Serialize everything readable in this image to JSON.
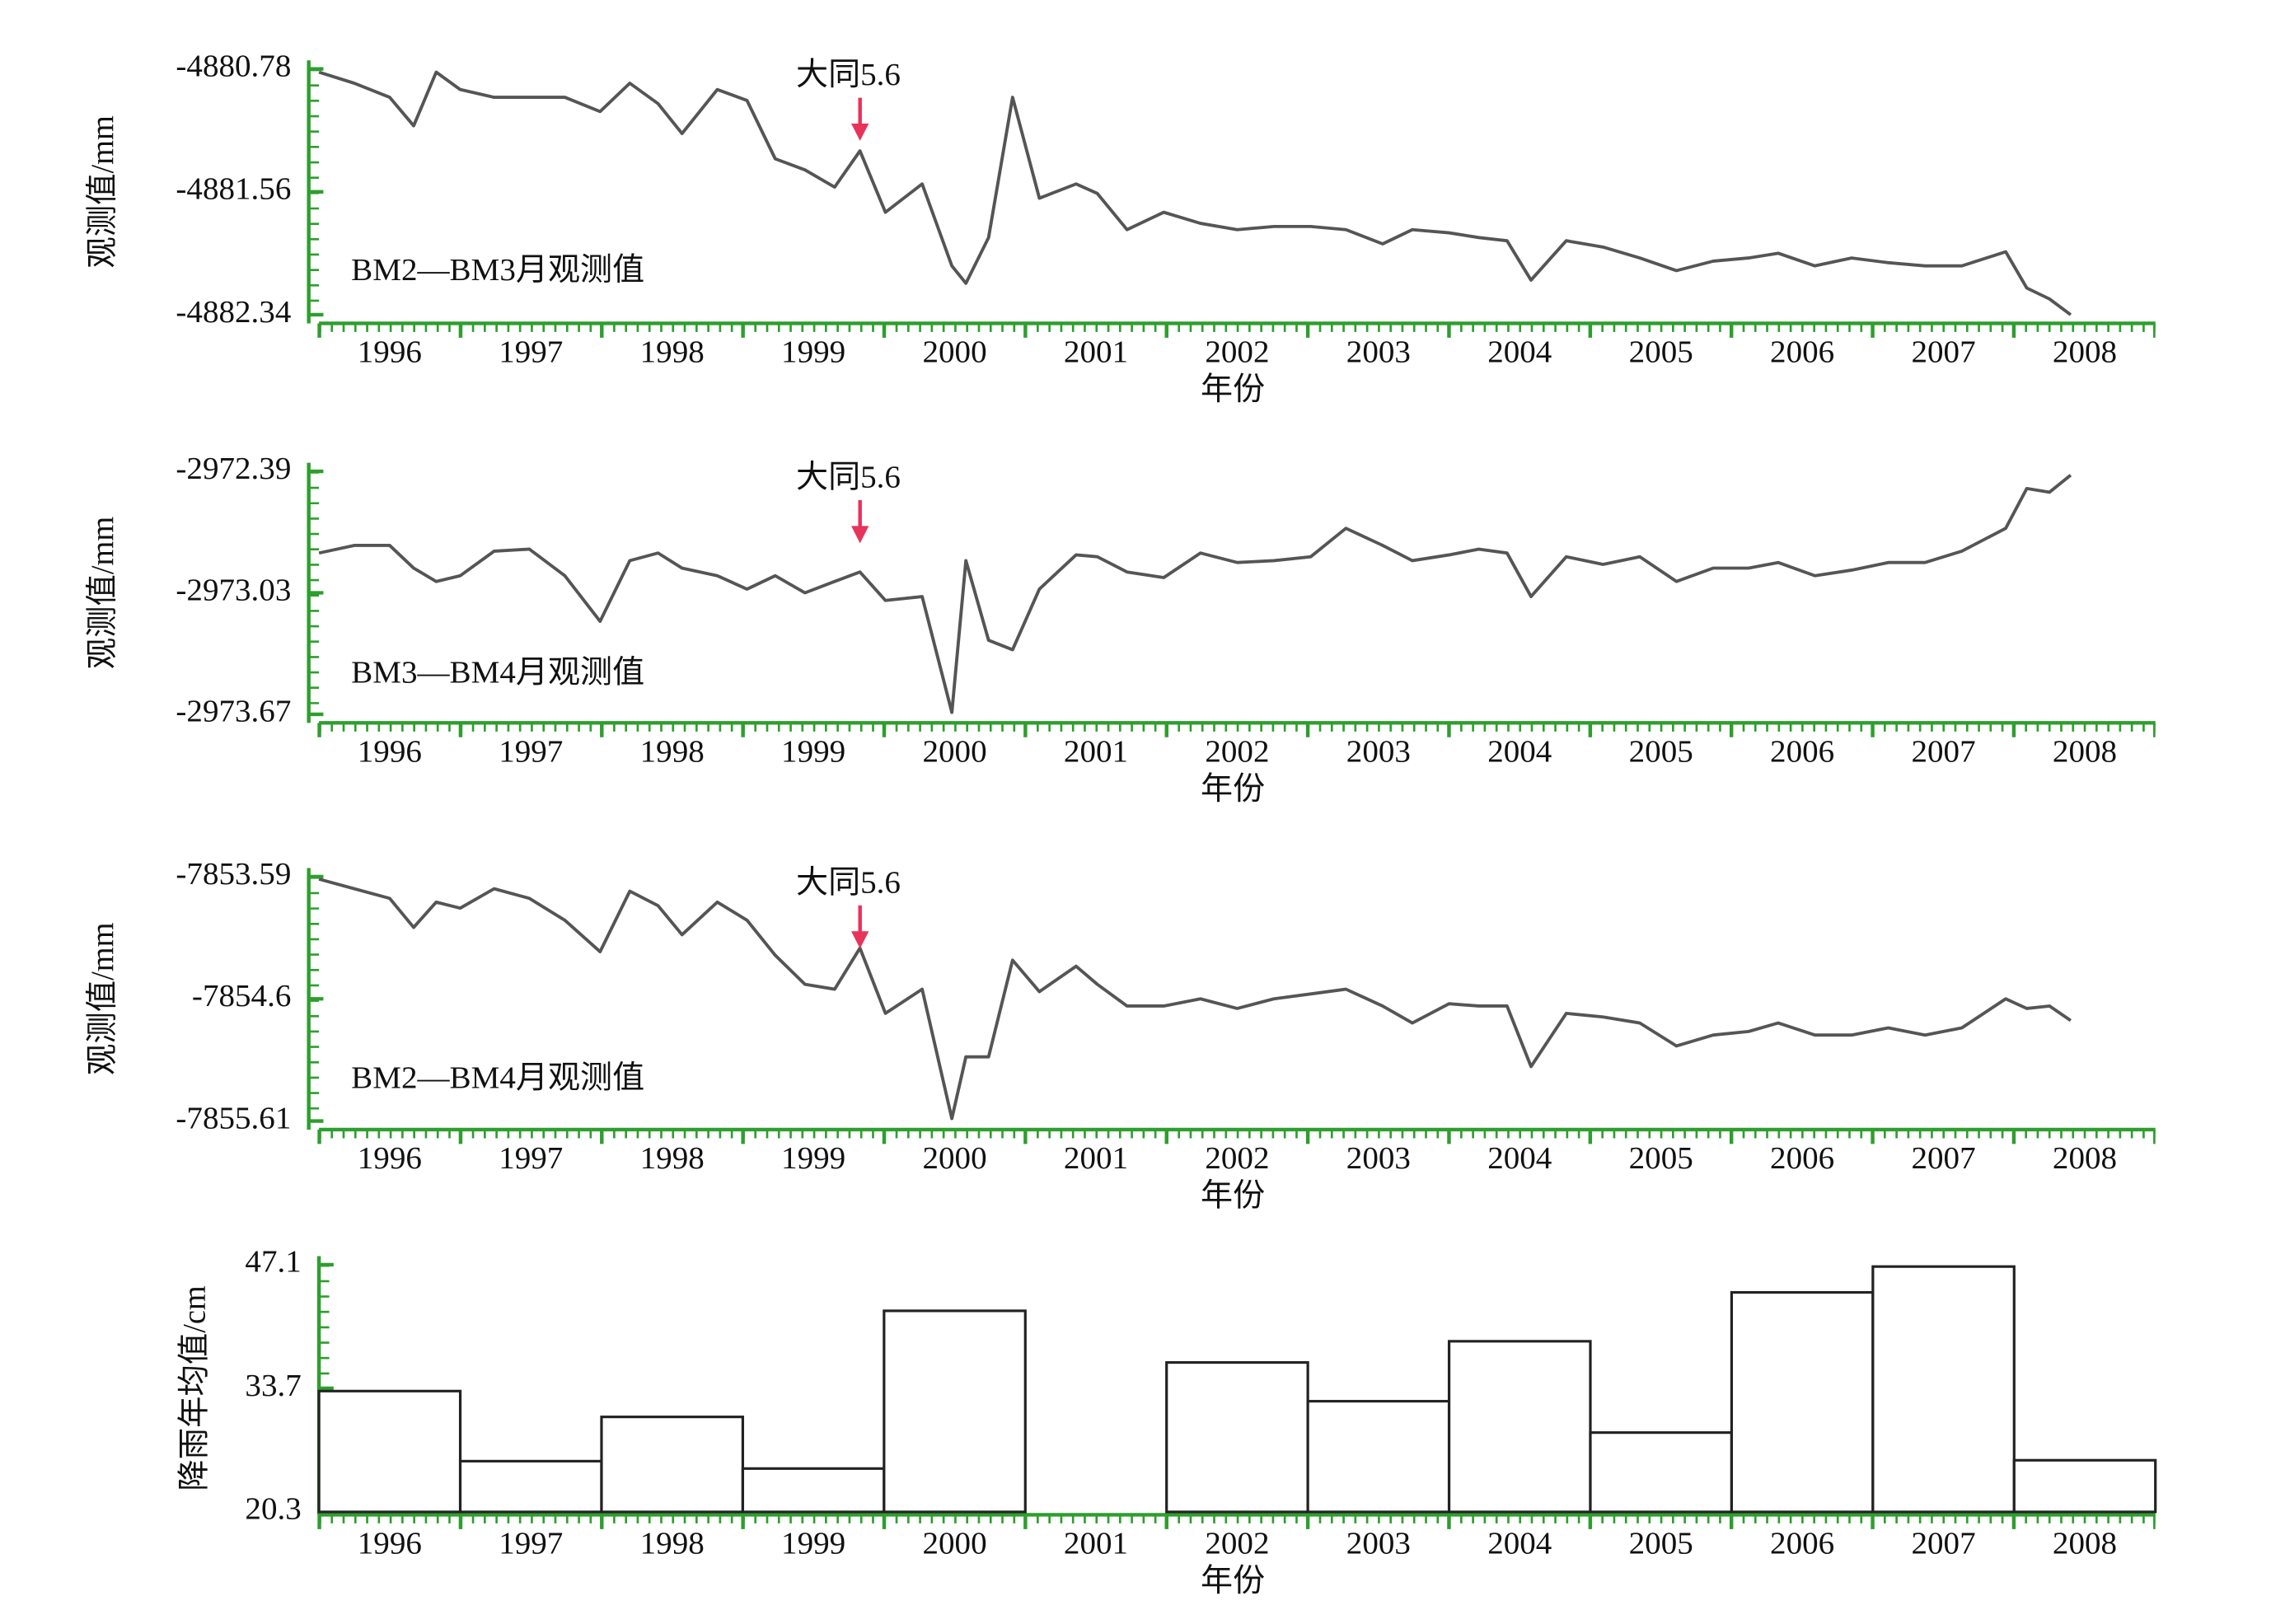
{
  "chart_data": [
    {
      "type": "line",
      "ylabel": "观测值/mm",
      "xlabel": "年份",
      "annotation": {
        "text": "大同5.6",
        "x": 1999.83
      },
      "x": [
        1996.0,
        1996.25,
        1996.5,
        1996.67,
        1996.83,
        1997.0,
        1997.24,
        1997.49,
        1997.74,
        1997.99,
        1998.2,
        1998.4,
        1998.57,
        1998.82,
        1999.03,
        1999.23,
        1999.44,
        1999.65,
        1999.83,
        2000.01,
        2000.27,
        2000.48,
        2000.58,
        2000.74,
        2000.91,
        2001.1,
        2001.36,
        2001.51,
        2001.72,
        2001.98,
        2002.24,
        2002.5,
        2002.76,
        2003.02,
        2003.27,
        2003.53,
        2003.74,
        2004.0,
        2004.21,
        2004.41,
        2004.58,
        2004.83,
        2005.09,
        2005.35,
        2005.61,
        2005.87,
        2006.12,
        2006.33,
        2006.59,
        2006.85,
        2007.11,
        2007.37,
        2007.63,
        2007.94,
        2008.09,
        2008.25,
        2008.4
      ],
      "series": [
        {
          "name": "BM2—BM3月观测值",
          "color": "#555555",
          "values": [
            -4880.8,
            -4880.87,
            -4880.96,
            -4881.14,
            -4880.8,
            -4880.91,
            -4880.96,
            -4880.96,
            -4880.96,
            -4881.05,
            -4880.87,
            -4881.0,
            -4881.19,
            -4880.91,
            -4880.98,
            -4881.35,
            -4881.42,
            -4881.53,
            -4881.3,
            -4881.69,
            -4881.51,
            -4882.03,
            -4882.14,
            -4881.85,
            -4880.96,
            -4881.6,
            -4881.51,
            -4881.57,
            -4881.8,
            -4881.69,
            -4881.76,
            -4881.8,
            -4881.78,
            -4881.78,
            -4881.8,
            -4881.89,
            -4881.8,
            -4881.82,
            -4881.85,
            -4881.87,
            -4882.12,
            -4881.87,
            -4881.91,
            -4881.98,
            -4882.06,
            -4882.0,
            -4881.98,
            -4881.95,
            -4882.03,
            -4881.98,
            -4882.01,
            -4882.03,
            -4882.03,
            -4881.94,
            -4882.17,
            -4882.24,
            -4882.34
          ]
        }
      ],
      "xlim": [
        1996,
        2009
      ],
      "xticks": [
        {
          "value": 1996.5,
          "label": "1996"
        },
        {
          "value": 1997.5,
          "label": "1997"
        },
        {
          "value": 1998.5,
          "label": "1998"
        },
        {
          "value": 1999.5,
          "label": "1999"
        },
        {
          "value": 2000.5,
          "label": "2000"
        },
        {
          "value": 2001.5,
          "label": "2001"
        },
        {
          "value": 2002.5,
          "label": "2002"
        },
        {
          "value": 2003.5,
          "label": "2003"
        },
        {
          "value": 2004.5,
          "label": "2004"
        },
        {
          "value": 2005.5,
          "label": "2005"
        },
        {
          "value": 2006.5,
          "label": "2006"
        },
        {
          "value": 2007.5,
          "label": "2007"
        },
        {
          "value": 2008.5,
          "label": "2008"
        }
      ],
      "ylim": [
        -4882.34,
        -4880.78
      ],
      "yticks": [
        -4880.78,
        -4881.56,
        -4882.34
      ]
    },
    {
      "type": "line",
      "ylabel": "观测值/mm",
      "xlabel": "年份",
      "annotation": {
        "text": "大同5.6",
        "x": 1999.83
      },
      "x": [
        1996.0,
        1996.25,
        1996.5,
        1996.67,
        1996.83,
        1997.0,
        1997.24,
        1997.49,
        1997.74,
        1997.99,
        1998.2,
        1998.4,
        1998.57,
        1998.82,
        1999.03,
        1999.23,
        1999.44,
        1999.65,
        1999.83,
        2000.01,
        2000.27,
        2000.48,
        2000.58,
        2000.74,
        2000.91,
        2001.1,
        2001.36,
        2001.51,
        2001.72,
        2001.98,
        2002.24,
        2002.5,
        2002.76,
        2003.02,
        2003.27,
        2003.53,
        2003.74,
        2004.0,
        2004.21,
        2004.41,
        2004.58,
        2004.83,
        2005.09,
        2005.35,
        2005.61,
        2005.87,
        2006.12,
        2006.33,
        2006.59,
        2006.85,
        2007.11,
        2007.37,
        2007.63,
        2007.94,
        2008.09,
        2008.25,
        2008.4
      ],
      "series": [
        {
          "name": "BM3—BM4月观测值",
          "color": "#555555",
          "values": [
            -2972.82,
            -2972.78,
            -2972.78,
            -2972.9,
            -2972.97,
            -2972.94,
            -2972.81,
            -2972.8,
            -2972.94,
            -2973.18,
            -2972.86,
            -2972.82,
            -2972.9,
            -2972.94,
            -2973.01,
            -2972.94,
            -2973.03,
            -2972.97,
            -2972.92,
            -2973.07,
            -2973.05,
            -2973.66,
            -2972.86,
            -2973.28,
            -2973.33,
            -2973.01,
            -2972.83,
            -2972.84,
            -2972.92,
            -2972.95,
            -2972.82,
            -2972.87,
            -2972.86,
            -2972.84,
            -2972.69,
            -2972.78,
            -2972.86,
            -2972.83,
            -2972.8,
            -2972.82,
            -2973.05,
            -2972.84,
            -2972.88,
            -2972.84,
            -2972.97,
            -2972.9,
            -2972.9,
            -2972.87,
            -2972.94,
            -2972.91,
            -2972.87,
            -2972.87,
            -2972.81,
            -2972.69,
            -2972.48,
            -2972.5,
            -2972.41
          ]
        }
      ],
      "xlim": [
        1996,
        2009
      ],
      "xticks": [
        {
          "value": 1996.5,
          "label": "1996"
        },
        {
          "value": 1997.5,
          "label": "1997"
        },
        {
          "value": 1998.5,
          "label": "1998"
        },
        {
          "value": 1999.5,
          "label": "1999"
        },
        {
          "value": 2000.5,
          "label": "2000"
        },
        {
          "value": 2001.5,
          "label": "2001"
        },
        {
          "value": 2002.5,
          "label": "2002"
        },
        {
          "value": 2003.5,
          "label": "2003"
        },
        {
          "value": 2004.5,
          "label": "2004"
        },
        {
          "value": 2005.5,
          "label": "2005"
        },
        {
          "value": 2006.5,
          "label": "2006"
        },
        {
          "value": 2007.5,
          "label": "2007"
        },
        {
          "value": 2008.5,
          "label": "2008"
        }
      ],
      "ylim": [
        -2973.67,
        -2972.39
      ],
      "yticks": [
        -2972.39,
        -2973.03,
        -2973.67
      ]
    },
    {
      "type": "line",
      "ylabel": "观测值/mm",
      "xlabel": "年份",
      "annotation": {
        "text": "大同5.6",
        "x": 1999.83
      },
      "x": [
        1996.0,
        1996.25,
        1996.5,
        1996.67,
        1996.83,
        1997.0,
        1997.24,
        1997.49,
        1997.74,
        1997.99,
        1998.2,
        1998.4,
        1998.57,
        1998.82,
        1999.03,
        1999.23,
        1999.44,
        1999.65,
        1999.83,
        2000.01,
        2000.27,
        2000.48,
        2000.58,
        2000.74,
        2000.91,
        2001.1,
        2001.36,
        2001.51,
        2001.72,
        2001.98,
        2002.24,
        2002.5,
        2002.76,
        2003.02,
        2003.27,
        2003.53,
        2003.74,
        2004.0,
        2004.21,
        2004.41,
        2004.58,
        2004.83,
        2005.09,
        2005.35,
        2005.61,
        2005.87,
        2006.12,
        2006.33,
        2006.59,
        2006.85,
        2007.11,
        2007.37,
        2007.63,
        2007.94,
        2008.09,
        2008.25,
        2008.4
      ],
      "series": [
        {
          "name": "BM2—BM4月观测值",
          "color": "#555555",
          "values": [
            -7853.61,
            -7853.69,
            -7853.77,
            -7854.01,
            -7853.8,
            -7853.85,
            -7853.69,
            -7853.77,
            -7853.95,
            -7854.21,
            -7853.71,
            -7853.83,
            -7854.07,
            -7853.8,
            -7853.95,
            -7854.24,
            -7854.48,
            -7854.52,
            -7854.18,
            -7854.72,
            -7854.52,
            -7855.59,
            -7855.08,
            -7855.08,
            -7854.28,
            -7854.54,
            -7854.33,
            -7854.48,
            -7854.66,
            -7854.66,
            -7854.6,
            -7854.68,
            -7854.6,
            -7854.56,
            -7854.52,
            -7854.66,
            -7854.8,
            -7854.64,
            -7854.66,
            -7854.66,
            -7855.16,
            -7854.72,
            -7854.75,
            -7854.8,
            -7854.99,
            -7854.9,
            -7854.87,
            -7854.8,
            -7854.9,
            -7854.9,
            -7854.84,
            -7854.9,
            -7854.84,
            -7854.6,
            -7854.68,
            -7854.66,
            -7854.78
          ]
        }
      ],
      "xlim": [
        1996,
        2009
      ],
      "xticks": [
        {
          "value": 1996.5,
          "label": "1996"
        },
        {
          "value": 1997.5,
          "label": "1997"
        },
        {
          "value": 1998.5,
          "label": "1998"
        },
        {
          "value": 1999.5,
          "label": "1999"
        },
        {
          "value": 2000.5,
          "label": "2000"
        },
        {
          "value": 2001.5,
          "label": "2001"
        },
        {
          "value": 2002.5,
          "label": "2002"
        },
        {
          "value": 2003.5,
          "label": "2003"
        },
        {
          "value": 2004.5,
          "label": "2004"
        },
        {
          "value": 2005.5,
          "label": "2005"
        },
        {
          "value": 2006.5,
          "label": "2006"
        },
        {
          "value": 2007.5,
          "label": "2007"
        },
        {
          "value": 2008.5,
          "label": "2008"
        }
      ],
      "ylim": [
        -7855.61,
        -7853.59
      ],
      "yticks": [
        -7853.59,
        -7854.6,
        -7855.61
      ]
    },
    {
      "type": "bar",
      "ylabel": "降雨年均值/cm",
      "xlabel": "年份",
      "categories": [
        "1996",
        "1997",
        "1998",
        "1999",
        "2000",
        "2001",
        "2002",
        "2003",
        "2004",
        "2005",
        "2006",
        "2007",
        "2008"
      ],
      "values": [
        33.4,
        25.8,
        30.6,
        25.0,
        42.1,
        null,
        36.5,
        32.3,
        38.8,
        28.9,
        44.1,
        46.9,
        25.9
      ],
      "color": "#ffffff",
      "ylim": [
        20.3,
        47.1
      ],
      "yticks": [
        20.3,
        33.7,
        47.1
      ]
    }
  ]
}
